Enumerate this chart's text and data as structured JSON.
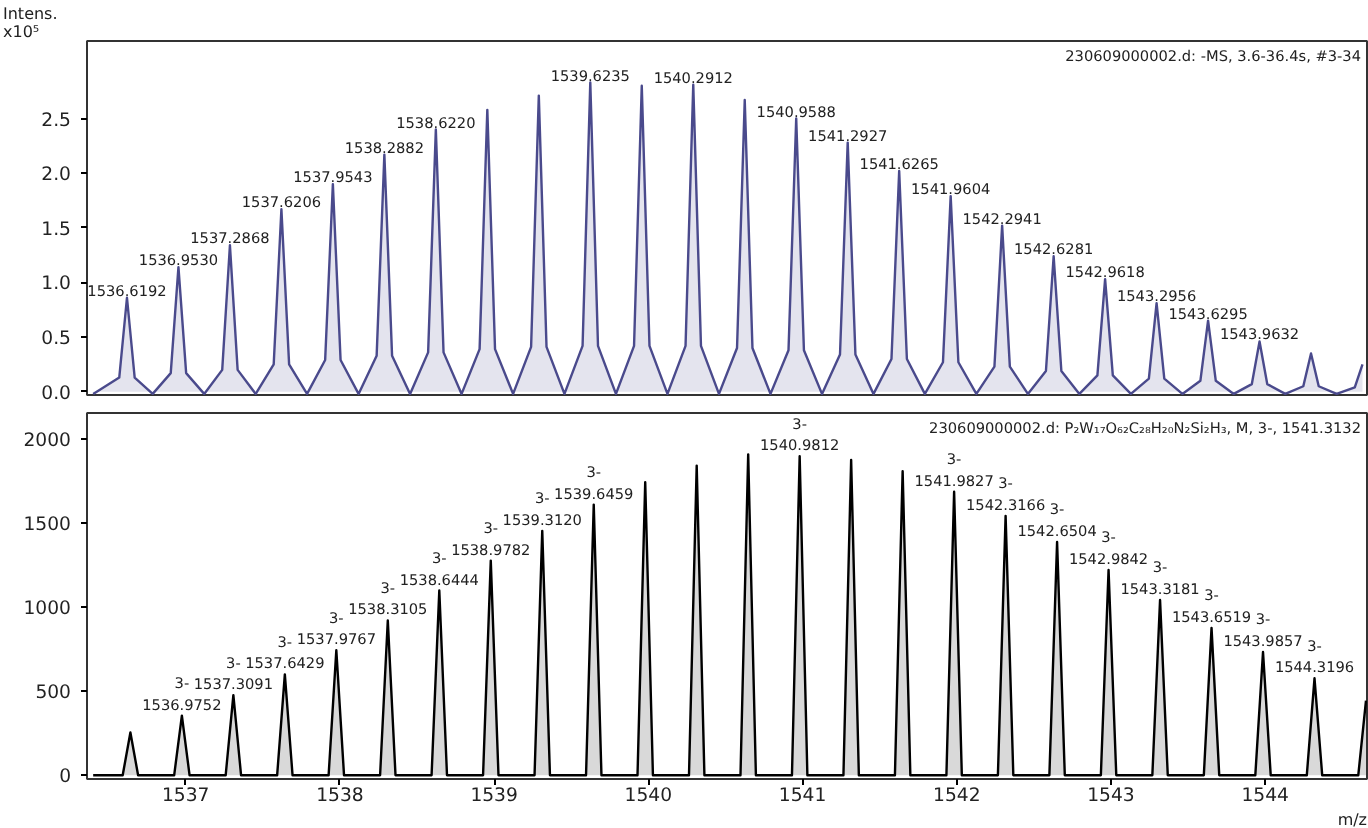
{
  "chart_data": [
    {
      "type": "area",
      "ylabel": "Intens.\nx10⁵",
      "xlim": [
        1536.36,
        1544.66
      ],
      "ylim": [
        -0.03,
        3.21
      ],
      "tick_labels": "y",
      "yticks": [
        {
          "value": 0,
          "label": "0.0"
        },
        {
          "value": 0.5,
          "label": "0.5"
        },
        {
          "value": 1,
          "label": "1.0"
        },
        {
          "value": 1.5,
          "label": "1.5"
        },
        {
          "value": 2,
          "label": "2.0"
        },
        {
          "value": 2.5,
          "label": "2.5"
        }
      ],
      "series": [
        {
          "color": "#4a4a8c",
          "x": [
            1536.4,
            1536.5692,
            1536.6192,
            1536.6692,
            1536.786,
            1536.903,
            1536.953,
            1537.003,
            1537.12,
            1537.2368,
            1537.2868,
            1537.3368,
            1537.454,
            1537.5706,
            1537.6206,
            1537.6706,
            1537.787,
            1537.9043,
            1537.9543,
            1538.0043,
            1538.121,
            1538.2382,
            1538.2882,
            1538.3382,
            1538.455,
            1538.572,
            1538.622,
            1538.672,
            1538.789,
            1538.9058,
            1538.9558,
            1539.0058,
            1539.123,
            1539.2397,
            1539.2897,
            1539.3397,
            1539.456,
            1539.5735,
            1539.6235,
            1539.6735,
            1539.79,
            1539.9073,
            1539.9573,
            1540.0073,
            1540.124,
            1540.2412,
            1540.2912,
            1540.3412,
            1540.458,
            1540.575,
            1540.625,
            1540.675,
            1540.792,
            1540.9088,
            1540.9588,
            1541.0088,
            1541.126,
            1541.2427,
            1541.2927,
            1541.3427,
            1541.46,
            1541.5765,
            1541.6265,
            1541.6765,
            1541.793,
            1541.9104,
            1541.9604,
            1542.0104,
            1542.127,
            1542.2441,
            1542.2941,
            1542.3441,
            1542.461,
            1542.5781,
            1542.6281,
            1542.6781,
            1542.795,
            1542.9118,
            1542.9618,
            1543.0118,
            1543.129,
            1543.2456,
            1543.2956,
            1543.3456,
            1543.463,
            1543.5795,
            1543.6295,
            1543.6795,
            1543.796,
            1543.9132,
            1543.9632,
            1544.0132,
            1544.13,
            1544.247,
            1544.297,
            1544.347,
            1544.463,
            1544.5808,
            1544.6308
          ],
          "values": [
            -0.02,
            0.13,
            0.86,
            0.13,
            -0.02,
            0.17,
            1.14,
            0.17,
            -0.02,
            0.2,
            1.34,
            0.2,
            -0.02,
            0.25,
            1.67,
            0.25,
            -0.02,
            0.29,
            1.9,
            0.29,
            -0.02,
            0.33,
            2.17,
            0.33,
            -0.02,
            0.36,
            2.4,
            0.36,
            -0.02,
            0.39,
            2.58,
            0.39,
            -0.02,
            0.41,
            2.71,
            0.41,
            -0.02,
            0.42,
            2.83,
            0.42,
            -0.02,
            0.42,
            2.8,
            0.42,
            -0.02,
            0.42,
            2.81,
            0.42,
            -0.02,
            0.4,
            2.67,
            0.4,
            -0.02,
            0.38,
            2.5,
            0.38,
            -0.02,
            0.34,
            2.28,
            0.34,
            -0.02,
            0.3,
            2.02,
            0.3,
            -0.02,
            0.27,
            1.79,
            0.27,
            -0.02,
            0.23,
            1.52,
            0.23,
            -0.02,
            0.19,
            1.24,
            0.19,
            -0.02,
            0.15,
            1.03,
            0.15,
            -0.02,
            0.12,
            0.81,
            0.12,
            -0.02,
            0.1,
            0.65,
            0.1,
            -0.02,
            0.07,
            0.46,
            0.07,
            -0.02,
            0.05,
            0.35,
            0.05,
            -0.02,
            0.04,
            0.25
          ]
        }
      ],
      "annotations": [
        "230609000002.d: -MS, 3.6-36.4s, #3-34",
        {
          "text": "1536.6192",
          "x": 1536.6192,
          "y": 0.86
        },
        {
          "text": "1536.9530",
          "x": 1536.953,
          "y": 1.14
        },
        {
          "text": "1537.2868",
          "x": 1537.2868,
          "y": 1.34
        },
        {
          "text": "1537.6206",
          "x": 1537.6206,
          "y": 1.67
        },
        {
          "text": "1537.9543",
          "x": 1537.9543,
          "y": 1.9
        },
        {
          "text": "1538.2882",
          "x": 1538.2882,
          "y": 2.17
        },
        {
          "text": "1538.6220",
          "x": 1538.622,
          "y": 2.4
        },
        {
          "text": "1539.6235",
          "x": 1539.6235,
          "y": 2.83
        },
        {
          "text": "1540.2912",
          "x": 1540.2912,
          "y": 2.81
        },
        {
          "text": "1540.9588",
          "x": 1540.9588,
          "y": 2.5
        },
        {
          "text": "1541.2927",
          "x": 1541.2927,
          "y": 2.28
        },
        {
          "text": "1541.6265",
          "x": 1541.6265,
          "y": 2.02
        },
        {
          "text": "1541.9604",
          "x": 1541.9604,
          "y": 1.79
        },
        {
          "text": "1542.2941",
          "x": 1542.2941,
          "y": 1.52
        },
        {
          "text": "1542.6281",
          "x": 1542.6281,
          "y": 1.24
        },
        {
          "text": "1542.9618",
          "x": 1542.9618,
          "y": 1.03
        },
        {
          "text": "1543.2956",
          "x": 1543.2956,
          "y": 0.81
        },
        {
          "text": "1543.6295",
          "x": 1543.6295,
          "y": 0.65
        },
        {
          "text": "1543.9632",
          "x": 1543.9632,
          "y": 0.46
        }
      ]
    },
    {
      "type": "area",
      "xlabel": "m/z",
      "xlim": [
        1536.36,
        1544.66
      ],
      "ylim": [
        -22,
        2155
      ],
      "xticks": [
        1537,
        1538,
        1539,
        1540,
        1541,
        1542,
        1543,
        1544
      ],
      "yticks": [
        0,
        500,
        1000,
        1500,
        2000
      ],
      "series": [
        {
          "color": "#000000",
          "x": [
            1536.4,
            1536.5914,
            1536.6414,
            1536.6914,
            1536.9252,
            1536.9752,
            1537.0252,
            1537.2591,
            1537.3091,
            1537.3591,
            1537.5929,
            1537.6429,
            1537.6929,
            1537.9267,
            1537.9767,
            1538.0267,
            1538.2605,
            1538.3105,
            1538.3605,
            1538.5944,
            1538.6444,
            1538.6944,
            1538.9282,
            1538.9782,
            1539.0282,
            1539.262,
            1539.312,
            1539.362,
            1539.5959,
            1539.6459,
            1539.6959,
            1539.9297,
            1539.9797,
            1540.0297,
            1540.2635,
            1540.3135,
            1540.3635,
            1540.5974,
            1540.6474,
            1540.6974,
            1540.9312,
            1540.9812,
            1541.0312,
            1541.265,
            1541.315,
            1541.365,
            1541.5989,
            1541.6489,
            1541.6989,
            1541.9327,
            1541.9827,
            1542.0327,
            1542.2666,
            1542.3166,
            1542.3666,
            1542.6004,
            1542.6504,
            1542.7004,
            1542.9342,
            1542.9842,
            1543.0342,
            1543.2681,
            1543.3181,
            1543.3681,
            1543.6019,
            1543.6519,
            1543.7019,
            1543.9357,
            1543.9857,
            1544.0357,
            1544.2696,
            1544.3196,
            1544.3696,
            1544.6034,
            1544.6534
          ],
          "values": [
            0,
            0,
            255,
            0,
            0,
            355,
            0,
            0,
            477,
            0,
            0,
            600,
            0,
            0,
            744,
            0,
            0,
            921,
            0,
            0,
            1099,
            0,
            0,
            1277,
            0,
            0,
            1454,
            0,
            0,
            1610,
            0,
            0,
            1743,
            0,
            0,
            1842,
            0,
            0,
            1909,
            0,
            0,
            1898,
            0,
            0,
            1876,
            0,
            0,
            1809,
            0,
            0,
            1687,
            0,
            0,
            1543,
            0,
            0,
            1388,
            0,
            0,
            1221,
            0,
            0,
            1043,
            0,
            0,
            877,
            0,
            0,
            733,
            0,
            0,
            577,
            0,
            0,
            444
          ]
        }
      ],
      "annotations": [
        "230609000002.d: P₂W₁₇O₆₂C₂₈H₂₀N₂Si₂H₃, M, 3-, 1541.3132",
        {
          "text": "3-\n1536.9752",
          "x": 1536.9752,
          "y": 355
        },
        {
          "text": "3-\n1537.3091",
          "x": 1537.3091,
          "y": 477
        },
        {
          "text": "3-\n1537.6429",
          "x": 1537.6429,
          "y": 600
        },
        {
          "text": "3-\n1537.9767",
          "x": 1537.9767,
          "y": 744
        },
        {
          "text": "3-\n1538.3105",
          "x": 1538.3105,
          "y": 921
        },
        {
          "text": "3-\n1538.6444",
          "x": 1538.6444,
          "y": 1099
        },
        {
          "text": "3-\n1538.9782",
          "x": 1538.9782,
          "y": 1277
        },
        {
          "text": "3-\n1539.3120",
          "x": 1539.312,
          "y": 1454
        },
        {
          "text": "3-\n1539.6459",
          "x": 1539.6459,
          "y": 1610
        },
        {
          "text": "3-\n1540.9812",
          "x": 1540.9812,
          "y": 1898
        },
        {
          "text": "3-\n1541.9827",
          "x": 1541.9827,
          "y": 1687
        },
        {
          "text": "3-\n1542.3166",
          "x": 1542.3166,
          "y": 1543
        },
        {
          "text": "3-\n1542.6504",
          "x": 1542.6504,
          "y": 1388
        },
        {
          "text": "3-\n1542.9842",
          "x": 1542.9842,
          "y": 1221
        },
        {
          "text": "3-\n1543.3181",
          "x": 1543.3181,
          "y": 1043
        },
        {
          "text": "3-\n1543.6519",
          "x": 1543.6519,
          "y": 877
        },
        {
          "text": "3-\n1543.9857",
          "x": 1543.9857,
          "y": 733
        },
        {
          "text": "3-\n1544.3196",
          "x": 1544.3196,
          "y": 577
        }
      ]
    }
  ]
}
